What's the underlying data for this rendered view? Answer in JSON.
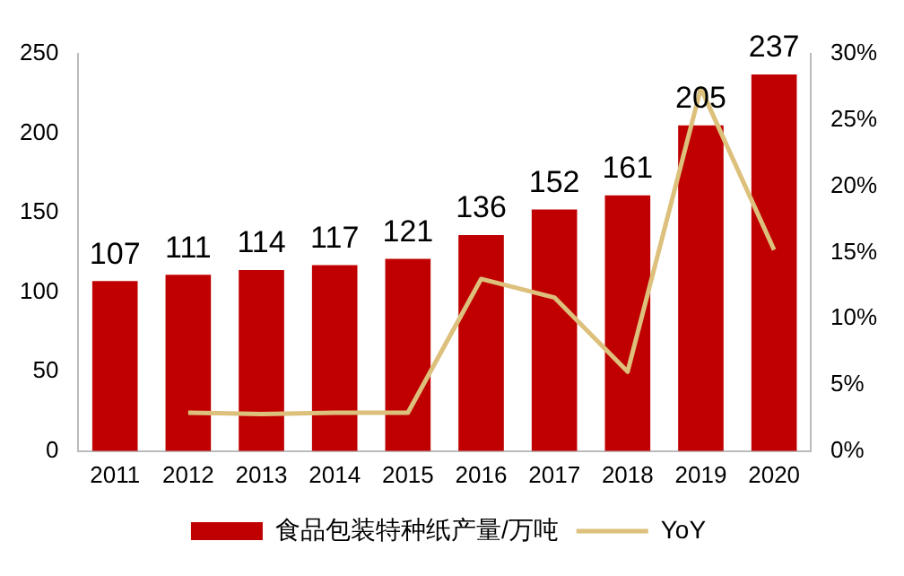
{
  "chart_data": {
    "type": "bar",
    "categories": [
      "2011",
      "2012",
      "2013",
      "2014",
      "2015",
      "2016",
      "2017",
      "2018",
      "2019",
      "2020"
    ],
    "series": [
      {
        "name": "食品包装特种纸产量/万吨",
        "color": "#c00000",
        "values": [
          107,
          111,
          114,
          117,
          121,
          136,
          152,
          161,
          205,
          237
        ],
        "value_labels": [
          "107",
          "111",
          "114",
          "117",
          "121",
          "136",
          "152",
          "161",
          "205",
          "237"
        ]
      },
      {
        "name": "YoY",
        "type": "line",
        "axis": "y2",
        "color": "#dcc07c",
        "values": [
          null,
          2.9,
          2.8,
          2.9,
          2.9,
          13,
          11.6,
          6,
          27.4,
          15.2
        ]
      }
    ],
    "ylim": [
      0,
      250
    ],
    "yticks": [
      0,
      50,
      100,
      150,
      200,
      250
    ],
    "y2lim": [
      0,
      30
    ],
    "y2ticks": [
      {
        "value": 0,
        "label": "0%"
      },
      {
        "value": 5,
        "label": "5%"
      },
      {
        "value": 10,
        "label": "10%"
      },
      {
        "value": 15,
        "label": "15%"
      },
      {
        "value": 20,
        "label": "20%"
      },
      {
        "value": 25,
        "label": "25%"
      },
      {
        "value": 30,
        "label": "30%"
      }
    ],
    "grid": false,
    "legend": "bottom",
    "marker": "none",
    "line_style": "solid"
  }
}
